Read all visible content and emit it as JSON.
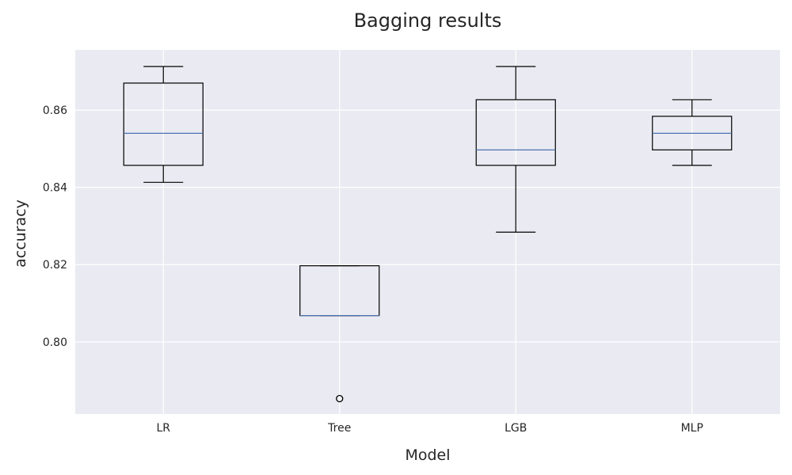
{
  "chart_data": {
    "type": "box",
    "title": "Bagging results",
    "xlabel": "Model",
    "ylabel": "accuracy",
    "categories": [
      "LR",
      "Tree",
      "LGB",
      "MLP"
    ],
    "yticks": [
      0.8,
      0.82,
      0.84,
      0.86
    ],
    "ytick_labels": [
      "0.80",
      "0.82",
      "0.84",
      "0.86"
    ],
    "ylim": [
      0.7813,
      0.8756
    ],
    "grid": true,
    "style": {
      "background": "#eaeaf2",
      "grid_color": "#ffffff",
      "box_color": "#000000",
      "median_color": "#4c72b0"
    },
    "boxes": [
      {
        "name": "LR",
        "whisker_low": 0.8413,
        "q1": 0.8457,
        "median": 0.854,
        "q3": 0.867,
        "whisker_high": 0.8713,
        "outliers": []
      },
      {
        "name": "Tree",
        "whisker_low": 0.8068,
        "q1": 0.8068,
        "median": 0.8068,
        "q3": 0.8197,
        "whisker_high": 0.8197,
        "outliers": [
          0.7853
        ]
      },
      {
        "name": "LGB",
        "whisker_low": 0.8284,
        "q1": 0.8457,
        "median": 0.8497,
        "q3": 0.8627,
        "whisker_high": 0.8713,
        "outliers": []
      },
      {
        "name": "MLP",
        "whisker_low": 0.8457,
        "q1": 0.8497,
        "median": 0.854,
        "q3": 0.8584,
        "whisker_high": 0.8627,
        "outliers": []
      }
    ]
  }
}
